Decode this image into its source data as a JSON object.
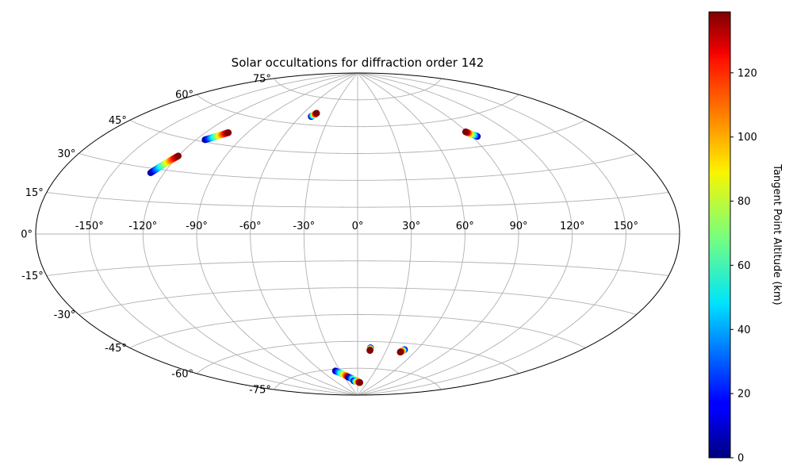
{
  "chart_data": {
    "type": "scatter",
    "projection": "aitoff",
    "title": "Solar occultations for diffraction order 142",
    "grid": true,
    "x_ticks": [
      "-150°",
      "-120°",
      "-90°",
      "-60°",
      "-30°",
      "0°",
      "30°",
      "60°",
      "90°",
      "120°",
      "150°"
    ],
    "y_ticks": [
      "75°",
      "60°",
      "45°",
      "30°",
      "15°",
      "0°",
      "-15°",
      "-30°",
      "-45°",
      "-60°",
      "-75°"
    ],
    "x_tick_values": [
      -150,
      -120,
      -90,
      -60,
      -30,
      0,
      30,
      60,
      90,
      120,
      150
    ],
    "y_tick_values": [
      75,
      60,
      45,
      30,
      15,
      0,
      -15,
      -30,
      -45,
      -60,
      -75
    ],
    "colorbar": {
      "label": "Tangent Point Altitude (km)",
      "colormap": "jet",
      "range": [
        0,
        139
      ],
      "ticks": [
        "0",
        "20",
        "40",
        "60",
        "80",
        "100",
        "120"
      ],
      "tick_values": [
        0,
        20,
        40,
        60,
        80,
        100,
        120
      ]
    },
    "tracks": [
      {
        "lon": [
          -128,
          -120
        ],
        "lat": [
          28,
          37
        ],
        "alt": [
          0,
          139
        ]
      },
      {
        "lon": [
          -114,
          -104
        ],
        "lat": [
          46,
          51
        ],
        "alt": [
          0,
          139
        ]
      },
      {
        "lon": [
          -49,
          -46
        ],
        "lat": [
          64.5,
          66.5
        ],
        "alt": [
          0,
          139
        ]
      },
      {
        "lon": [
          94,
          89
        ],
        "lat": [
          50,
          53
        ],
        "alt": [
          0,
          139
        ]
      },
      {
        "lon": [
          13,
          13
        ],
        "lat": [
          -63.5,
          -65
        ],
        "alt": [
          0,
          139
        ]
      },
      {
        "lon": [
          48,
          45.5
        ],
        "lat": [
          -63.5,
          -65
        ],
        "alt": [
          0,
          139
        ]
      },
      {
        "lon": [
          -38,
          -20
        ],
        "lat": [
          -76,
          -80
        ],
        "alt": [
          0,
          139
        ]
      },
      {
        "lon": [
          -20,
          5
        ],
        "lat": [
          -80,
          -83
        ],
        "alt": [
          0,
          139
        ]
      },
      {
        "lon": [
          -11,
          7
        ],
        "lat": [
          -82,
          -83
        ],
        "alt": [
          0,
          139
        ]
      }
    ]
  }
}
